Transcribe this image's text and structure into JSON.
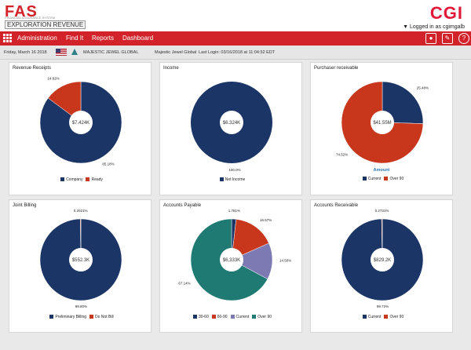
{
  "header": {
    "brand": "FAS",
    "brand_tagline": "FINANCIAL ASSURANCE SYSTEM",
    "product": "EXPLORATION REVENUE",
    "company_logo": "CGI",
    "logged_in": "Logged in as cgimgalb"
  },
  "nav": {
    "items": [
      "Administration",
      "Find It",
      "Reports",
      "Dashboard"
    ],
    "icons": [
      "user-icon",
      "edit-icon",
      "help-icon"
    ]
  },
  "info": {
    "date": "Friday, March 16 2018",
    "company": "MAJESTIC JEWEL GLOBAL",
    "company_alt": "Majestic Jewel Global",
    "last_login": "Last Login: 03/16/2018 at 11:04:52 EDT"
  },
  "colors": {
    "navy": "#1b3567",
    "red": "#c8371b",
    "teal": "#1e7a72",
    "purple": "#7d79b3",
    "accent": "#d2232a"
  },
  "chart_data": [
    {
      "type": "pie",
      "title": "Revenue Receipts",
      "center_label": "$7.424K",
      "slices": [
        {
          "name": "Company",
          "value": 85.18,
          "label": "85.18%",
          "color": "#1b3567"
        },
        {
          "name": "Ready",
          "value": 14.82,
          "label": "14.82%",
          "color": "#c8371b"
        }
      ]
    },
    {
      "type": "pie",
      "title": "Income",
      "center_label": "$6.324K",
      "slices": [
        {
          "name": "Net Income",
          "value": 100.0,
          "label": "100.0%",
          "color": "#1b3567"
        }
      ]
    },
    {
      "type": "pie",
      "title": "Purchaser receivable",
      "center_label": "$41.55M",
      "subtitle": "Amount",
      "slices": [
        {
          "name": "Current",
          "value": 25.48,
          "label": "25.48%",
          "color": "#1b3567"
        },
        {
          "name": "Over 90",
          "value": 74.52,
          "label": "74.52%",
          "color": "#c8371b"
        }
      ]
    },
    {
      "type": "pie",
      "title": "Joint Billing",
      "center_label": "$552.3K",
      "slices": [
        {
          "name": "Preliminary Billing",
          "value": 99.8,
          "label": "99.80%",
          "color": "#1b3567"
        },
        {
          "name": "Do Not Bill",
          "value": 0.2,
          "label": "0.2021%",
          "color": "#c8371b"
        }
      ]
    },
    {
      "type": "pie",
      "title": "Accounts Payable",
      "center_label": "$6,333K",
      "slices": [
        {
          "name": "30-60",
          "value": 1.781,
          "label": "1.781%",
          "color": "#1b3567"
        },
        {
          "name": "60-90",
          "value": 16.57,
          "label": "16.57%",
          "color": "#c8371b"
        },
        {
          "name": "Current",
          "value": 14.5,
          "label": "14.50%",
          "color": "#7d79b3"
        },
        {
          "name": "Over 90",
          "value": 67.14,
          "label": "67.14%",
          "color": "#1e7a72"
        }
      ]
    },
    {
      "type": "pie",
      "title": "Accounts Receivable",
      "center_label": "$829.2K",
      "slices": [
        {
          "name": "Current",
          "value": 99.72,
          "label": "99.72%",
          "color": "#1b3567"
        },
        {
          "name": "Over 90",
          "value": 0.27,
          "label": "0.2731%",
          "color": "#c8371b"
        }
      ]
    }
  ]
}
